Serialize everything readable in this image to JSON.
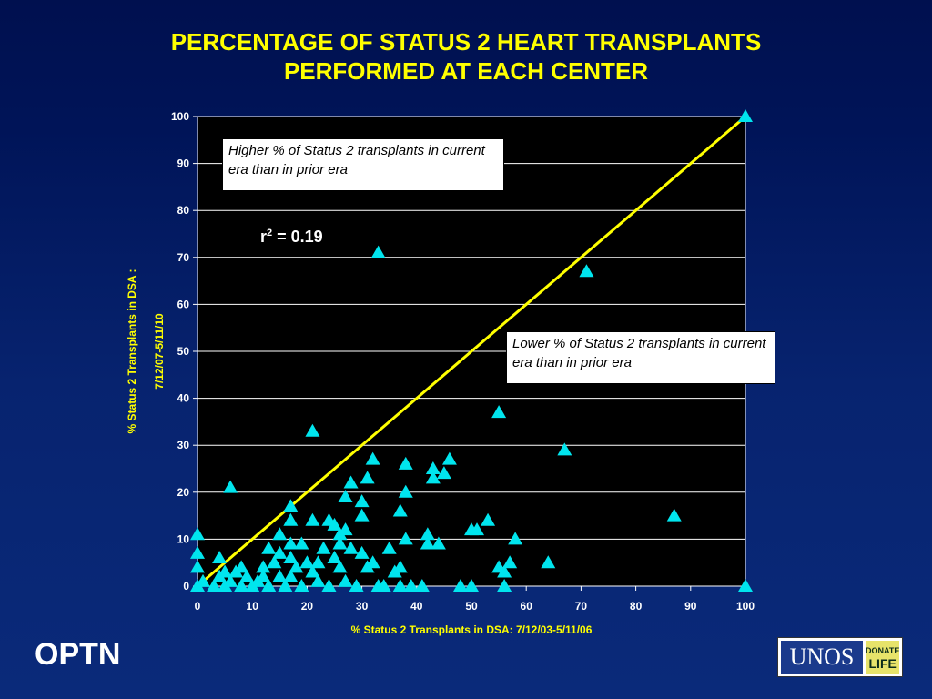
{
  "slide": {
    "title_line1": "PERCENTAGE OF STATUS 2 HEART TRANSPLANTS",
    "title_line2": "PERFORMED AT EACH CENTER",
    "footer_left": "OPTN",
    "logo_main": "UNOS",
    "logo_side_top": "DONATE",
    "logo_side_bottom": "LIFE"
  },
  "annotations": {
    "higher": "Higher % of Status 2 transplants in current era than in prior era",
    "lower": "Lower % of  Status 2 transplants in current era than in prior era",
    "r2_prefix": "r",
    "r2_sup": "2",
    "r2_value": " = 0.19"
  },
  "chart_data": {
    "type": "scatter",
    "xlabel": "% Status 2 Transplants in DSA: 7/12/03-5/11/06",
    "ylabel_line1": "% Status 2 Transplants in DSA :",
    "ylabel_line2": "7/12/07-5/11/10",
    "xlim": [
      0,
      100
    ],
    "ylim": [
      0,
      100
    ],
    "xticks": [
      0,
      10,
      20,
      30,
      40,
      50,
      60,
      70,
      80,
      90,
      100
    ],
    "yticks": [
      0,
      10,
      20,
      30,
      40,
      50,
      60,
      70,
      80,
      90,
      100
    ],
    "grid": "horizontal",
    "reference_line": {
      "from": [
        0,
        0
      ],
      "to": [
        100,
        100
      ],
      "color": "#ffff00"
    },
    "marker_color": "#00e5ee",
    "points": [
      [
        100,
        100
      ],
      [
        33,
        71
      ],
      [
        71,
        67
      ],
      [
        55,
        37
      ],
      [
        67,
        29
      ],
      [
        87,
        15
      ],
      [
        100,
        0
      ],
      [
        21,
        33
      ],
      [
        6,
        21
      ],
      [
        0,
        11
      ],
      [
        0,
        7
      ],
      [
        0,
        4
      ],
      [
        0,
        0
      ],
      [
        1,
        1
      ],
      [
        3,
        0
      ],
      [
        4,
        6
      ],
      [
        4,
        2
      ],
      [
        5,
        0
      ],
      [
        5,
        3
      ],
      [
        6,
        1
      ],
      [
        7,
        3
      ],
      [
        8,
        0
      ],
      [
        8,
        4
      ],
      [
        9,
        2
      ],
      [
        10,
        0
      ],
      [
        11,
        1
      ],
      [
        12,
        2
      ],
      [
        12,
        4
      ],
      [
        13,
        8
      ],
      [
        13,
        0
      ],
      [
        14,
        5
      ],
      [
        15,
        11
      ],
      [
        15,
        7
      ],
      [
        15,
        2
      ],
      [
        16,
        0
      ],
      [
        17,
        17
      ],
      [
        17,
        14
      ],
      [
        17,
        9
      ],
      [
        17,
        6
      ],
      [
        17,
        2
      ],
      [
        18,
        4
      ],
      [
        19,
        9
      ],
      [
        19,
        0
      ],
      [
        20,
        5
      ],
      [
        21,
        14
      ],
      [
        21,
        3
      ],
      [
        22,
        1
      ],
      [
        22,
        5
      ],
      [
        23,
        8
      ],
      [
        24,
        14
      ],
      [
        24,
        0
      ],
      [
        25,
        13
      ],
      [
        25,
        6
      ],
      [
        26,
        11
      ],
      [
        26,
        4
      ],
      [
        26,
        9
      ],
      [
        27,
        19
      ],
      [
        27,
        12
      ],
      [
        27,
        1
      ],
      [
        28,
        22
      ],
      [
        28,
        8
      ],
      [
        29,
        0
      ],
      [
        30,
        18
      ],
      [
        30,
        15
      ],
      [
        30,
        7
      ],
      [
        31,
        23
      ],
      [
        31,
        4
      ],
      [
        32,
        27
      ],
      [
        32,
        5
      ],
      [
        33,
        0
      ],
      [
        34,
        0
      ],
      [
        35,
        8
      ],
      [
        36,
        3
      ],
      [
        37,
        16
      ],
      [
        37,
        4
      ],
      [
        37,
        0
      ],
      [
        38,
        20
      ],
      [
        38,
        10
      ],
      [
        38,
        26
      ],
      [
        39,
        0
      ],
      [
        41,
        0
      ],
      [
        42,
        11
      ],
      [
        42,
        9
      ],
      [
        43,
        25
      ],
      [
        43,
        23
      ],
      [
        44,
        9
      ],
      [
        45,
        24
      ],
      [
        46,
        27
      ],
      [
        48,
        0
      ],
      [
        50,
        0
      ],
      [
        50,
        12
      ],
      [
        51,
        12
      ],
      [
        53,
        14
      ],
      [
        55,
        4
      ],
      [
        56,
        3
      ],
      [
        56,
        0
      ],
      [
        57,
        5
      ],
      [
        58,
        10
      ],
      [
        64,
        5
      ]
    ]
  }
}
